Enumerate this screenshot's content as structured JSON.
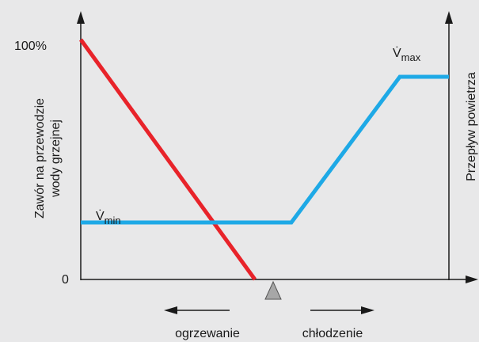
{
  "axes": {
    "left_top": "100%",
    "left_bottom": "0",
    "left_label": [
      "Zawór na przewodzie",
      "wody grzejnej"
    ],
    "right_label": "Przepływ powietrza"
  },
  "curves": {
    "v_min": {
      "symbol": "V̇",
      "subscript": "min"
    },
    "v_max": {
      "symbol": "V̇",
      "subscript": "max"
    }
  },
  "directions": {
    "left": "ogrzewanie",
    "right": "chłodzenie"
  }
}
